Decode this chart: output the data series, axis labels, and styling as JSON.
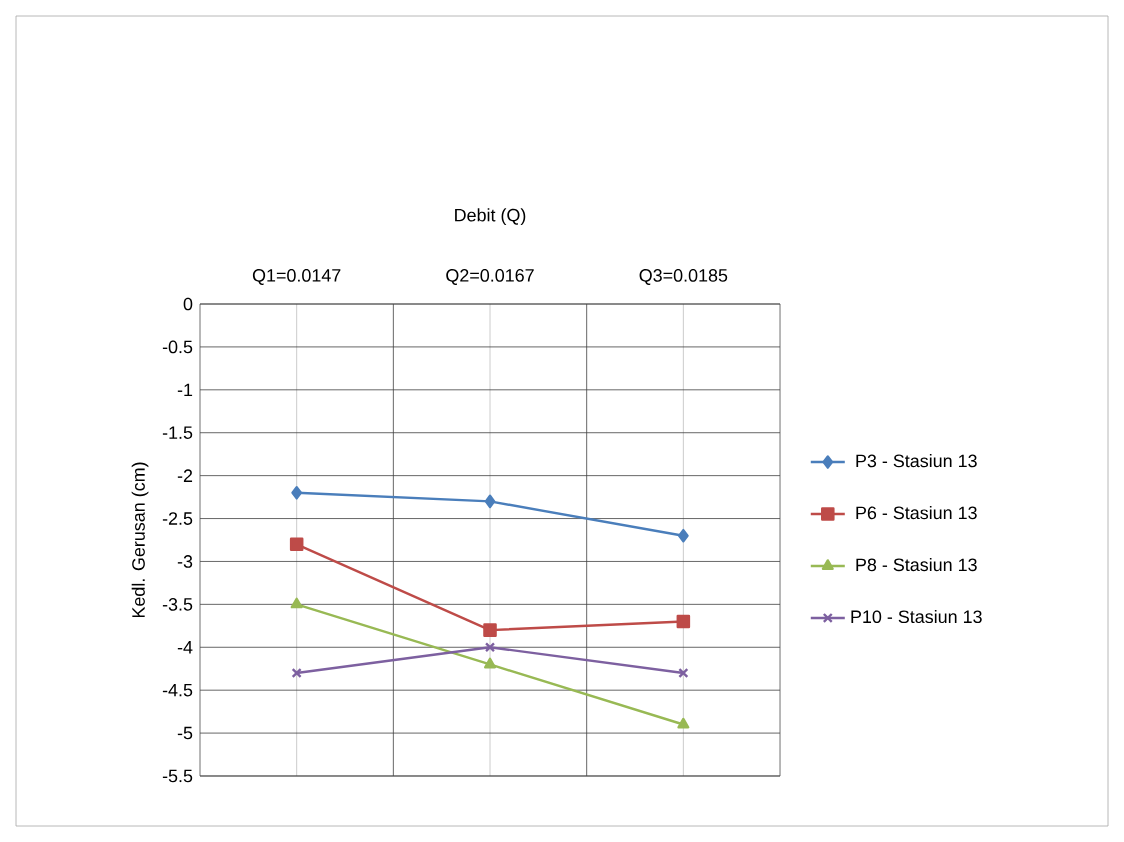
{
  "chart_data": {
    "type": "line",
    "title": "Debit (Q)",
    "ylabel": "Kedl. Gerusan (cm)",
    "categories": [
      "Q1=0.0147",
      "Q2=0.0167",
      "Q3=0.0185"
    ],
    "series": [
      {
        "name": "P3 - Stasiun 13",
        "color": "#4a7ebb",
        "marker": "diamond",
        "values": [
          -2.2,
          -2.3,
          -2.7
        ]
      },
      {
        "name": "P6 - Stasiun 13",
        "color": "#be4b48",
        "marker": "square",
        "values": [
          -2.8,
          -3.8,
          -3.7
        ]
      },
      {
        "name": "P8 - Stasiun 13",
        "color": "#98b954",
        "marker": "triangle",
        "values": [
          -3.5,
          -4.2,
          -4.9
        ]
      },
      {
        "name": "P10 - Stasiun 13",
        "color": "#7d60a0",
        "marker": "cross",
        "values": [
          -4.3,
          -4.0,
          -4.3
        ]
      }
    ],
    "ylim": [
      -5.5,
      0
    ],
    "yticks": [
      0,
      -0.5,
      -1,
      -1.5,
      -2,
      -2.5,
      -3,
      -3.5,
      -4,
      -4.5,
      -5,
      -5.5
    ],
    "grid": true,
    "legend": "right"
  }
}
